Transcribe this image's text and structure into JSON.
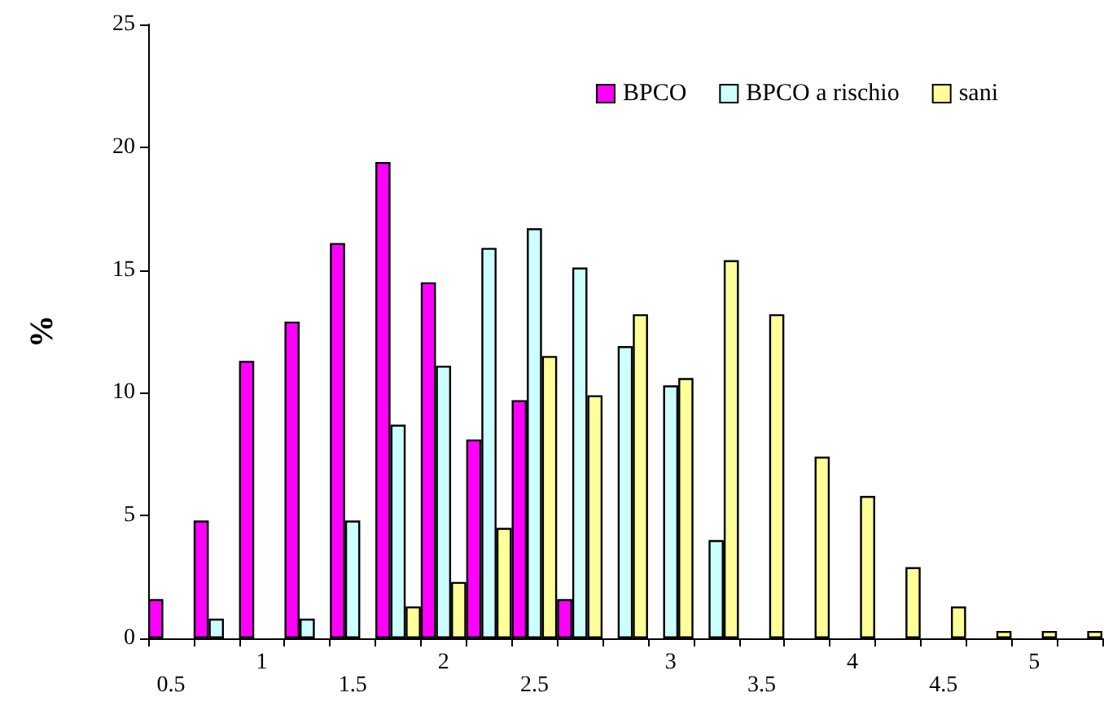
{
  "chart_data": {
    "type": "bar",
    "ylabel": "%",
    "categories": [
      "0.5",
      null,
      "1",
      null,
      "1.5",
      null,
      "2",
      null,
      "2.5",
      null,
      null,
      "3",
      null,
      "3.5",
      null,
      "4",
      null,
      "4.5",
      null,
      "5",
      null
    ],
    "series": [
      {
        "name": "BPCO",
        "color": "#ff00ff",
        "values": [
          1.6,
          4.8,
          11.3,
          12.9,
          16.1,
          19.4,
          14.5,
          8.1,
          9.7,
          1.6,
          0,
          0,
          0,
          0,
          0,
          0,
          0,
          0,
          0,
          0,
          0
        ]
      },
      {
        "name": "BPCO a rischio",
        "color": "#ccffff",
        "values": [
          0,
          0.8,
          0,
          0.8,
          4.8,
          8.7,
          11.1,
          15.9,
          16.7,
          15.1,
          11.9,
          10.3,
          4.0,
          0,
          0,
          0,
          0,
          0,
          0,
          0,
          0
        ]
      },
      {
        "name": "sani",
        "color": "#ffff99",
        "values": [
          0,
          0,
          0,
          0,
          0,
          1.3,
          2.3,
          4.5,
          11.5,
          9.9,
          13.2,
          10.6,
          15.4,
          13.2,
          7.4,
          5.8,
          2.9,
          1.3,
          0.3,
          0.3,
          0.3
        ]
      }
    ],
    "ylim": [
      0,
      25
    ],
    "yticks": [
      0,
      5,
      10,
      15,
      20,
      25
    ],
    "grid": false,
    "legend": "top right"
  }
}
